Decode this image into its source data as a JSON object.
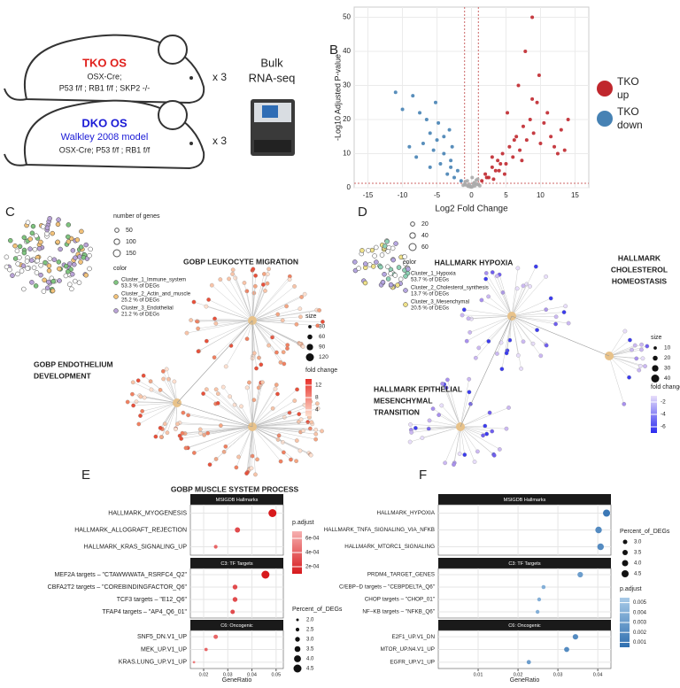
{
  "panel_a": {
    "label": "A",
    "tko": {
      "title": "TKO OS",
      "lines": [
        "OSX-Cre;",
        "P53 f/f ; RB1 f/f ; SKP2 -/-"
      ]
    },
    "dko": {
      "title": "DKO OS",
      "subtitle": "Walkley 2008 model",
      "lines": [
        "OSX-Cre; P53 f/f ; RB1 f/f"
      ]
    },
    "replicates": "x 3",
    "method": [
      "Bulk",
      "RNA-seq"
    ]
  },
  "panel_b": {
    "label": "B",
    "type": "scatter",
    "xlabel": "Log2 Fold Change",
    "ylabel": "-Log10 Adjusted P-value",
    "xlim": [
      -17,
      17
    ],
    "ylim": [
      0,
      53
    ],
    "xticks": [
      -15,
      -10,
      -5,
      0,
      5,
      10,
      15
    ],
    "yticks": [
      0,
      10,
      20,
      30,
      40,
      50
    ],
    "grid": true,
    "thresholds": {
      "x": [
        -1,
        1
      ],
      "y": 1.3
    },
    "series": [
      {
        "legend": [
          "TKO",
          "up"
        ],
        "color": "#c0272d",
        "x": [
          1.5,
          2,
          2.5,
          3,
          3.2,
          3.8,
          4,
          4.5,
          5,
          5.5,
          6,
          6.5,
          7,
          7.5,
          8,
          8.5,
          9,
          9.5,
          10,
          11,
          12,
          13,
          14,
          2.2,
          3.5,
          4.8,
          6.2,
          7.3,
          8.8,
          10.5,
          12.5,
          9.8,
          5.2,
          6.8,
          11.5,
          13.5,
          7.8,
          4.2,
          3,
          8.8
        ],
        "y": [
          2,
          4,
          3,
          6,
          2.5,
          8,
          5,
          10,
          7,
          12,
          9,
          15,
          11,
          18,
          14,
          20,
          16,
          25,
          13,
          22,
          12,
          17,
          20,
          3,
          5,
          4,
          14,
          8,
          26,
          19,
          10,
          33,
          22,
          30,
          15,
          11,
          40,
          7,
          9,
          50
        ]
      },
      {
        "legend": [
          "TKO",
          "down"
        ],
        "color": "#4682b4",
        "x": [
          -1.5,
          -2,
          -2.5,
          -3,
          -3.5,
          -4,
          -4.5,
          -5,
          -5.5,
          -6,
          -7,
          -8,
          -9,
          -10,
          -11,
          -3.2,
          -4.8,
          -6.5,
          -2.8,
          -5.2,
          -7.5,
          -4,
          -6,
          -3,
          -8.5
        ],
        "y": [
          2,
          5,
          3,
          8,
          4,
          10,
          7,
          14,
          11,
          16,
          13,
          9,
          12,
          23,
          28,
          17,
          19,
          20,
          12,
          25,
          22,
          15,
          6,
          6,
          27
        ]
      },
      {
        "color": "#aaaaaa",
        "x": [
          -1,
          -0.8,
          -0.5,
          -0.2,
          0,
          0.2,
          0.5,
          0.8,
          1,
          -0.6,
          0.4,
          -0.3,
          0.7,
          -1.2,
          1.2,
          0.1,
          -0.9,
          0.9,
          -0.4,
          0.3
        ],
        "y": [
          1,
          0.8,
          0.5,
          0.3,
          0.2,
          0.4,
          0.6,
          1.1,
          0.9,
          2,
          1.5,
          1,
          2.2,
          0.7,
          0.6,
          3,
          1.8,
          2.5,
          0.4,
          1.2
        ]
      }
    ]
  },
  "panel_c": {
    "label": "C",
    "size_legend": {
      "title": "number of genes",
      "ticks": [
        50,
        100,
        150
      ]
    },
    "color_legend": {
      "title": "color",
      "items": [
        {
          "name": "Cluster_1_Immune_system",
          "pct": "53.3 % of DEGs",
          "color": "#7fc47f"
        },
        {
          "name": "Cluster_2_Actin_and_muscle",
          "pct": "25.2 % of DEGs",
          "color": "#f2c27a"
        },
        {
          "name": "Cluster_3_Endothelial",
          "pct": "21.2 % of DEGs",
          "color": "#b9a3d6"
        }
      ]
    },
    "terms": [
      {
        "lines": [
          "GOBP LEUKOCYTE MIGRATION"
        ]
      },
      {
        "lines": [
          "GOBP ENDOTHELIUM",
          "DEVELOPMENT"
        ]
      },
      {
        "lines": [
          "GOBP MUSCLE SYSTEM PROCESS"
        ]
      }
    ],
    "node_size": {
      "title": "size",
      "ticks": [
        30,
        60,
        90,
        120
      ]
    },
    "fold_change": {
      "title": "fold change",
      "lim": [
        2,
        14
      ],
      "ticks": [
        12,
        8,
        4
      ],
      "colors": [
        "#fde0d0",
        "#e8302a"
      ]
    }
  },
  "panel_d": {
    "label": "D",
    "size_legend": {
      "ticks": [
        20,
        40,
        60
      ]
    },
    "color_legend": {
      "title": "color",
      "items": [
        {
          "name": "Cluster_1_Hypoxia",
          "pct": "53.7 % of DEGs",
          "color": "#8fd1b5"
        },
        {
          "name": "Cluster_2_Cholesterol_synthesis",
          "pct": "13.7 % of DEGs",
          "color": "#b5a6e0"
        },
        {
          "name": "Cluster_3_Mesenchymal",
          "pct": "20.5 % of DEGs",
          "color": "#f0e28a"
        }
      ]
    },
    "terms": [
      {
        "lines": [
          "HALLMARK HYPOXIA"
        ]
      },
      {
        "lines": [
          "HALLMARK",
          "CHOLESTEROL",
          "HOMEOSTASIS"
        ]
      },
      {
        "lines": [
          "HALLMARK EPITHELIAL",
          "MESENCHYMAL",
          "TRANSITION"
        ]
      }
    ],
    "node_size": {
      "title": "size",
      "ticks": [
        10,
        20,
        30,
        40
      ]
    },
    "fold_change": {
      "title": "fold change",
      "lim": [
        -7,
        -1
      ],
      "ticks": [
        -2,
        -4,
        -6
      ],
      "colors": [
        "#2b2bf0",
        "#e8defa"
      ]
    }
  },
  "panel_e": {
    "label": "E",
    "type": "dot",
    "xlabel": "GeneRatio",
    "xlim": [
      0.0145,
      0.053
    ],
    "xticks": [
      0.02,
      0.03,
      0.04,
      0.05
    ],
    "facets": [
      {
        "name": "MSIGDB Hallmarks",
        "terms": [
          "HALLMARK_MYOGENESIS",
          "HALLMARK_ALLOGRAFT_REJECTION",
          "HALLMARK_KRAS_SIGNALING_UP"
        ],
        "gene_ratio": [
          0.0485,
          0.034,
          0.025
        ],
        "percent": [
          4.5,
          3.2,
          2.5
        ],
        "p_adjust": [
          0.0001,
          0.0003,
          0.0004
        ]
      },
      {
        "name": "C3: TF Targets",
        "terms": [
          "MEF2A targets – \"CTAWWWATA_RSRFC4_Q2\"",
          "CBFA2T2 targets – \"COREBINDINGFACTOR_Q6\"",
          "TCF3 targets – \"E12_Q6\"",
          "TFAP4 targets – \"AP4_Q6_01\""
        ],
        "gene_ratio": [
          0.0456,
          0.033,
          0.033,
          0.032
        ],
        "percent": [
          4.5,
          3.0,
          3.0,
          2.8
        ],
        "p_adjust": [
          0.0001,
          0.0003,
          0.0003,
          0.0003
        ]
      },
      {
        "name": "C6: Oncogenic",
        "terms": [
          "SNF5_DN.V1_UP",
          "MEK_UP.V1_UP",
          "KRAS.LUNG_UP.V1_UP"
        ],
        "gene_ratio": [
          0.025,
          0.021,
          0.016
        ],
        "percent": [
          2.8,
          2.3,
          1.9
        ],
        "p_adjust": [
          0.0004,
          0.0004,
          0.0005
        ]
      }
    ],
    "color_legend": {
      "title": "p.adjust",
      "lim": [
        0.0001,
        0.0007
      ],
      "colors": [
        "#d7191c",
        "#f6b0b0"
      ],
      "ticks": [
        {
          "value": 0.0006,
          "label": "6e-04"
        },
        {
          "value": 0.0004,
          "label": "4e-04"
        },
        {
          "value": 0.0002,
          "label": "2e-04"
        }
      ]
    },
    "size_legend": {
      "title": "Percent_of_DEGs",
      "ticks": [
        {
          "value": 2,
          "label": "2.0"
        },
        2.5,
        {
          "value": 3,
          "label": "3.0"
        },
        3.5,
        {
          "value": 4,
          "label": "4.0"
        },
        4.5
      ]
    }
  },
  "panel_f": {
    "label": "F",
    "type": "dot",
    "xlabel": "GeneRatio",
    "xlim": [
      0,
      0.0433
    ],
    "xticks": [
      0.01,
      0.02,
      0.03,
      0.04
    ],
    "facets": [
      {
        "name": "MSIGDB Hallmarks",
        "terms": [
          "HALLMARK_HYPOXIA",
          "HALLMARK_TNFA_SIGNALING_VIA_NFKB",
          "HALLMARK_MTORC1_SIGNALING"
        ],
        "gene_ratio": [
          0.0422,
          0.0402,
          0.0407
        ],
        "percent": [
          4.5,
          4.2,
          4.2
        ],
        "p_adjust": [
          0.001,
          0.002,
          0.002
        ]
      },
      {
        "name": "C3: TF Targets",
        "terms": [
          "PRDM4_TARGET_GENES",
          "C/EBP−D targets – \"CEBPDELTA_Q6\"",
          "CHOP targets – \"CHOP_01\"",
          "NF−KB targets – \"NFKB_Q6\""
        ],
        "gene_ratio": [
          0.0356,
          0.0264,
          0.0253,
          0.0249
        ],
        "percent": [
          3.6,
          2.8,
          2.7,
          2.7
        ],
        "p_adjust": [
          0.003,
          0.004,
          0.004,
          0.004
        ]
      },
      {
        "name": "C6: Oncogenic",
        "terms": [
          "E2F1_UP.V1_DN",
          "MTOR_UP.N4.V1_UP",
          "EGFR_UP.V1_UP"
        ],
        "gene_ratio": [
          0.0344,
          0.0322,
          0.0227
        ],
        "percent": [
          3.6,
          3.4,
          2.9
        ],
        "p_adjust": [
          0.002,
          0.002,
          0.003
        ]
      }
    ],
    "color_legend": {
      "title": "p.adjust",
      "lim": [
        0.0005,
        0.0055
      ],
      "colors": [
        "#2f6fb0",
        "#a9cbe8"
      ],
      "ticks": [
        0.005,
        0.004,
        0.003,
        0.002,
        0.001
      ]
    },
    "size_legend": {
      "title": "Percent_of_DEGs",
      "ticks": [
        {
          "value": 3,
          "label": "3.0"
        },
        3.5,
        {
          "value": 4,
          "label": "4.0"
        },
        4.5
      ]
    }
  }
}
